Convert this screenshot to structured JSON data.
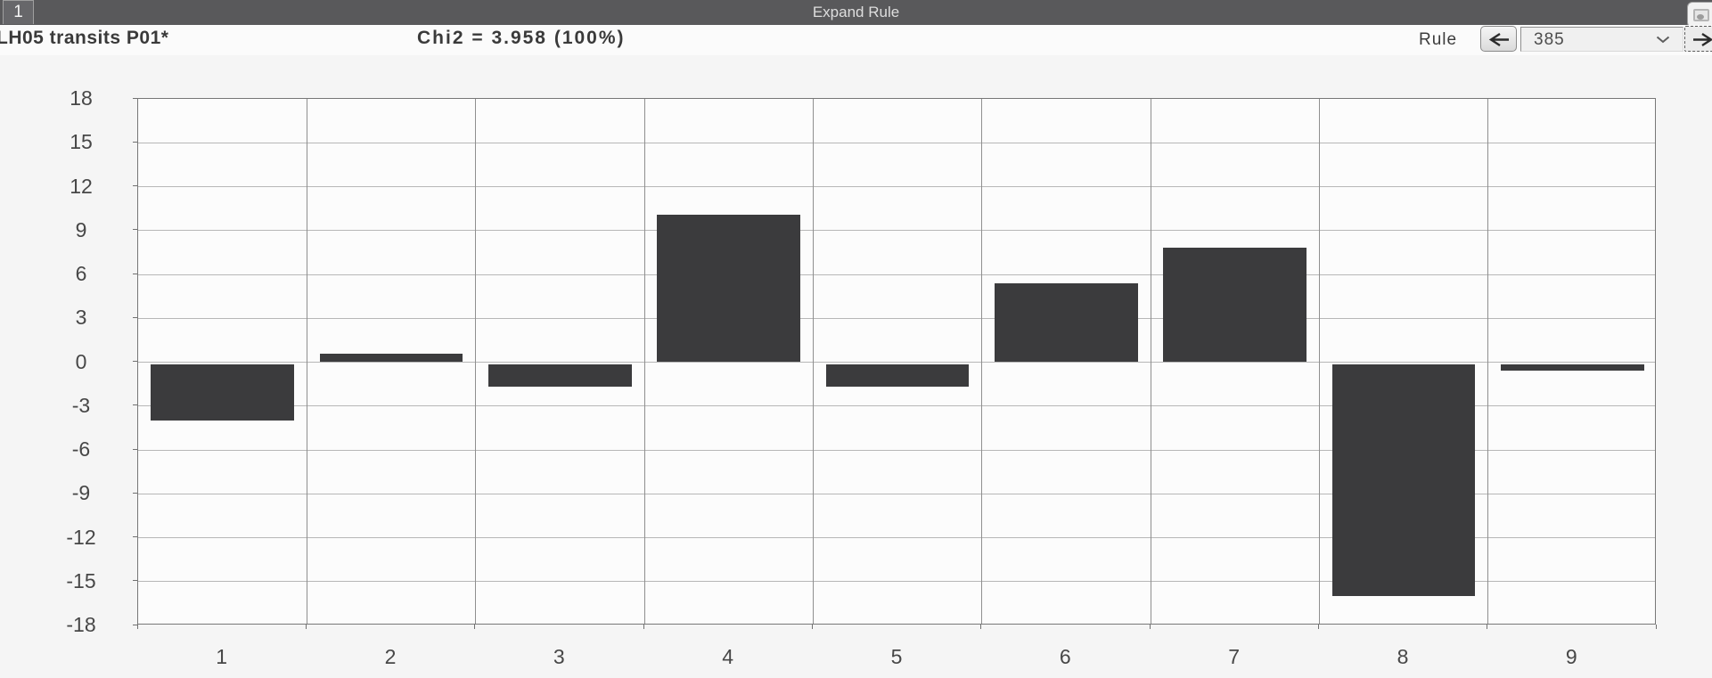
{
  "titlebar": {
    "tab_label": "1",
    "title": "Expand Rule"
  },
  "header": {
    "chart_label": "LH05 transits P01*",
    "chi2_label": "Chi2 = 3.958 (100%)",
    "rule_label": "Rule",
    "rule_value": "385"
  },
  "icons": {
    "prev": "arrow-left-icon",
    "next": "arrow-right-icon",
    "dropdown": "chevron-down-icon"
  },
  "colors": {
    "titlebar_bg": "#59595b",
    "bar_color": "#3b3b3d",
    "hgrid_color": "#b7b7b7",
    "vgrid_color": "#8f8f8f",
    "plot_border": "#777777",
    "page_bg": "#f5f5f5"
  },
  "chart_data": {
    "type": "bar",
    "title": "LH05 transits P01*",
    "subtitle": "Chi2 = 3.958 (100%)",
    "categories": [
      "1",
      "2",
      "3",
      "4",
      "5",
      "6",
      "7",
      "8",
      "9"
    ],
    "values": [
      -4.0,
      0.6,
      -1.7,
      10.1,
      -1.7,
      5.4,
      7.8,
      -16.0,
      -0.6
    ],
    "xlabel": "",
    "ylabel": "",
    "ylim": [
      -18,
      18
    ],
    "yticks": [
      18,
      15,
      12,
      9,
      6,
      3,
      0,
      -3,
      -6,
      -9,
      -12,
      -15,
      -18
    ],
    "grid": true,
    "legend": "none"
  }
}
